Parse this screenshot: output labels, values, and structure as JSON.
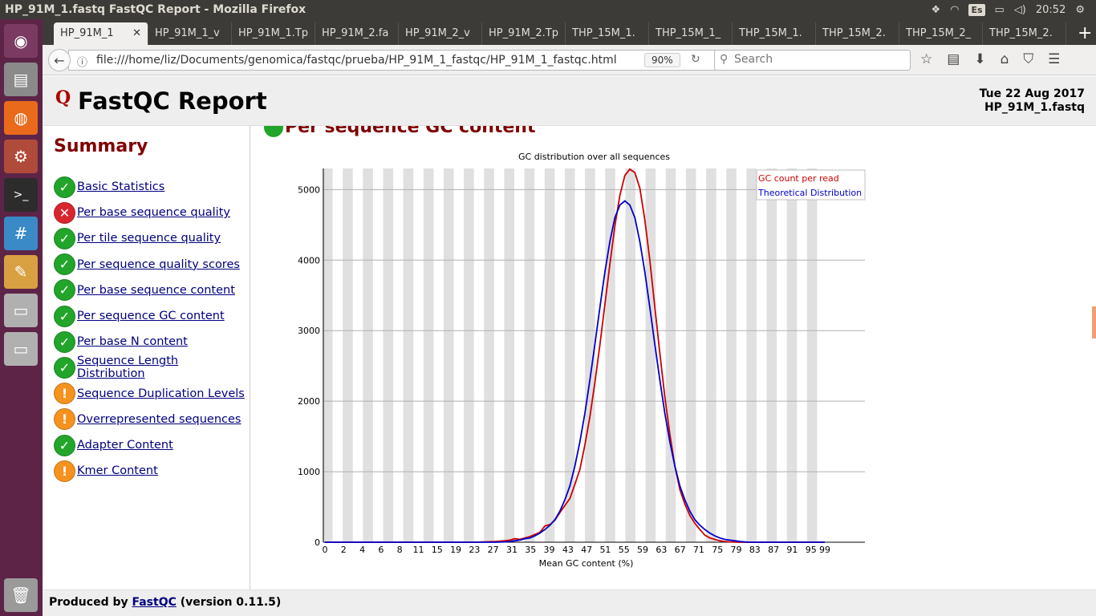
{
  "window": {
    "title": "HP_91M_1.fastq FastQC Report - Mozilla Firefox",
    "clock": "20:52",
    "keyboard": "Es"
  },
  "tabs": [
    {
      "label": "HP_91M_1"
    },
    {
      "label": "HP_91M_1_v"
    },
    {
      "label": "HP_91M_1.Tp"
    },
    {
      "label": "HP_91M_2.fa"
    },
    {
      "label": "HP_91M_2_v"
    },
    {
      "label": "HP_91M_2.Tp"
    },
    {
      "label": "THP_15M_1."
    },
    {
      "label": "THP_15M_1_"
    },
    {
      "label": "THP_15M_1."
    },
    {
      "label": "THP_15M_2."
    },
    {
      "label": "THP_15M_2_"
    },
    {
      "label": "THP_15M_2."
    }
  ],
  "nav": {
    "url": "file:///home/liz/Documents/genomica/fastqc/prueba/HP_91M_1_fastqc/HP_91M_1_fastqc.html",
    "zoom": "90%",
    "search_placeholder": "Search"
  },
  "report": {
    "title": "FastQC Report",
    "date": "Tue 22 Aug 2017",
    "file": "HP_91M_1.fastq",
    "summary_title": "Summary",
    "modules": [
      {
        "label": "Basic Statistics",
        "status": "pass"
      },
      {
        "label": "Per base sequence quality",
        "status": "fail"
      },
      {
        "label": "Per tile sequence quality",
        "status": "pass"
      },
      {
        "label": "Per sequence quality scores",
        "status": "pass"
      },
      {
        "label": "Per base sequence content",
        "status": "pass"
      },
      {
        "label": "Per sequence GC content",
        "status": "pass"
      },
      {
        "label": "Per base N content",
        "status": "pass"
      },
      {
        "label": "Sequence Length Distribution",
        "status": "pass"
      },
      {
        "label": "Sequence Duplication Levels",
        "status": "warn"
      },
      {
        "label": "Overrepresented sequences",
        "status": "warn"
      },
      {
        "label": "Adapter Content",
        "status": "pass"
      },
      {
        "label": "Kmer Content",
        "status": "warn"
      }
    ],
    "section_title": "Per sequence GC content",
    "footer_prefix": "Produced by ",
    "footer_link": "FastQC",
    "footer_suffix": " (version 0.11.5)"
  },
  "chart_data": {
    "type": "line",
    "title": "GC distribution over all sequences",
    "xlabel": "Mean GC content (%)",
    "ylabel": "",
    "xlim": [
      0,
      100
    ],
    "ylim": [
      0,
      5300
    ],
    "yticks": [
      0,
      1000,
      2000,
      3000,
      4000,
      5000
    ],
    "xtick_labels": [
      "0",
      "2",
      "4",
      "6",
      "8",
      "11",
      "15",
      "19",
      "23",
      "27",
      "31",
      "35",
      "39",
      "43",
      "47",
      "51",
      "55",
      "59",
      "63",
      "67",
      "71",
      "75",
      "79",
      "83",
      "87",
      "91",
      "95",
      "99"
    ],
    "legend_position": "top-right",
    "series": [
      {
        "name": "GC count per read",
        "color": "#cc0000",
        "x": [
          0,
          10,
          20,
          30,
          34,
          36,
          37,
          38,
          39,
          40,
          41,
          42,
          43,
          44,
          45,
          46,
          47,
          48,
          49,
          50,
          51,
          52,
          53,
          54,
          55,
          56,
          57,
          58,
          59,
          60,
          61,
          62,
          63,
          64,
          65,
          66,
          67,
          68,
          69,
          70,
          71,
          72,
          73,
          74,
          75,
          76,
          77,
          78,
          79,
          80,
          81,
          82,
          83,
          84,
          85,
          86,
          87,
          88,
          89,
          90,
          91,
          92,
          93,
          95,
          100
        ],
        "y": [
          0,
          0,
          0,
          0,
          10,
          20,
          30,
          50,
          40,
          60,
          80,
          110,
          140,
          230,
          250,
          310,
          420,
          520,
          620,
          820,
          1030,
          1380,
          1780,
          2260,
          2800,
          3370,
          3940,
          4480,
          4920,
          5200,
          5290,
          5240,
          5020,
          4570,
          4000,
          3330,
          2680,
          2060,
          1530,
          1080,
          750,
          540,
          380,
          270,
          180,
          100,
          60,
          40,
          20,
          10,
          5,
          2,
          0,
          0,
          0,
          0,
          0,
          0,
          0,
          0,
          0,
          0,
          0,
          0,
          0
        ]
      },
      {
        "name": "Theoretical Distribution",
        "color": "#0000cc",
        "x": [
          0,
          10,
          20,
          30,
          34,
          36,
          37,
          38,
          39,
          40,
          41,
          42,
          43,
          44,
          45,
          46,
          47,
          48,
          49,
          50,
          51,
          52,
          53,
          54,
          55,
          56,
          57,
          58,
          59,
          60,
          61,
          62,
          63,
          64,
          65,
          66,
          67,
          68,
          69,
          70,
          71,
          72,
          73,
          74,
          75,
          76,
          77,
          78,
          79,
          80,
          81,
          82,
          83,
          84,
          85,
          86,
          87,
          88,
          89,
          90,
          91,
          92,
          93,
          95,
          100
        ],
        "y": [
          0,
          0,
          0,
          0,
          0,
          5,
          10,
          20,
          30,
          50,
          60,
          90,
          130,
          180,
          240,
          320,
          440,
          600,
          800,
          1080,
          1420,
          1830,
          2300,
          2800,
          3330,
          3830,
          4260,
          4600,
          4780,
          4840,
          4780,
          4600,
          4260,
          3830,
          3330,
          2800,
          2300,
          1830,
          1420,
          1080,
          800,
          600,
          440,
          320,
          240,
          180,
          130,
          90,
          60,
          40,
          30,
          20,
          10,
          5,
          0,
          0,
          0,
          0,
          0,
          0,
          0,
          0,
          0,
          0,
          0
        ]
      }
    ]
  }
}
